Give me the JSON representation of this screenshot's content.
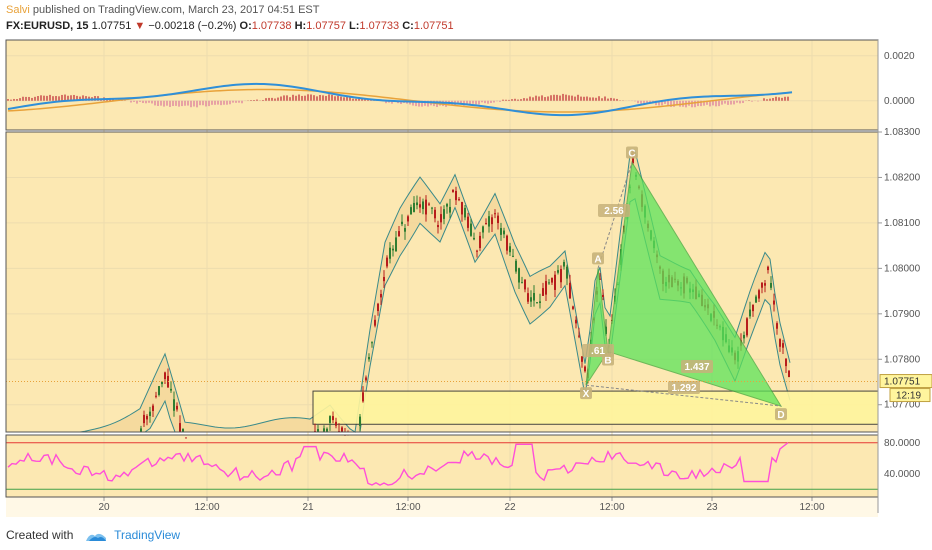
{
  "header": {
    "author": "Salvi",
    "published": "published on TradingView.com, March 23, 2017 04:51 EST",
    "symbol": "FX:EURUSD, 15",
    "last": "1.07751",
    "change_arrow": "▼",
    "change": "−0.00218 (−0.2%)",
    "o_label": "O:",
    "o": "1.07738",
    "h_label": "H:",
    "h": "1.07757",
    "l_label": "L:",
    "l": "1.07733",
    "c_label": "C:",
    "c": "1.07751"
  },
  "colors": {
    "background": "#fce8b2",
    "pattern_fill": "#5de35a",
    "candle_up": "#2e7d32",
    "candle_down": "#b71c1c",
    "band": "#3a8a8a",
    "macd_line": "#2f8fd8",
    "signal_line": "#e8a23a",
    "rsi_line": "#ff4fd8",
    "rsi_upper": "#e53935",
    "rsi_lower": "#43a047",
    "box_fill": "#fff59d",
    "price_label_bg": "#fff59d"
  },
  "chart_data": [
    {
      "type": "line",
      "panel": "macd",
      "y_ticks": [
        "0.0020",
        "0.0000"
      ],
      "ylim": [
        -0.0013,
        0.0027
      ],
      "series": []
    },
    {
      "type": "candlestick",
      "panel": "price",
      "x_ticks": [
        "20",
        "12:00",
        "21",
        "12:00",
        "22",
        "12:00",
        "23",
        "12:00"
      ],
      "y_ticks": [
        "1.08300",
        "1.08200",
        "1.08100",
        "1.08000",
        "1.07900",
        "1.07800",
        "1.07700"
      ],
      "ylim": [
        1.0764,
        1.083
      ],
      "last_price_label": "1.07751",
      "countdown_label": "12:19",
      "harmonic_pattern": {
        "points": [
          {
            "label": "X",
            "price": 1.07743
          },
          {
            "label": "A",
            "price": 1.08
          },
          {
            "label": "B",
            "price": 1.07817
          },
          {
            "label": "C",
            "price": 1.08233
          },
          {
            "label": "D",
            "price": 1.07697
          }
        ],
        "ratios": [
          "2.56",
          ".61",
          "1.437",
          "1.292"
        ]
      },
      "highlight_box": {
        "top": 1.0773,
        "bottom": 1.07657
      }
    },
    {
      "type": "line",
      "panel": "rsi",
      "y_ticks": [
        "80.0000",
        "40.0000"
      ],
      "ylim": [
        10,
        90
      ],
      "upper_band": 80,
      "lower_band": 20,
      "series": []
    }
  ],
  "footer": {
    "created_with": "Created with",
    "brand": "TradingView"
  }
}
